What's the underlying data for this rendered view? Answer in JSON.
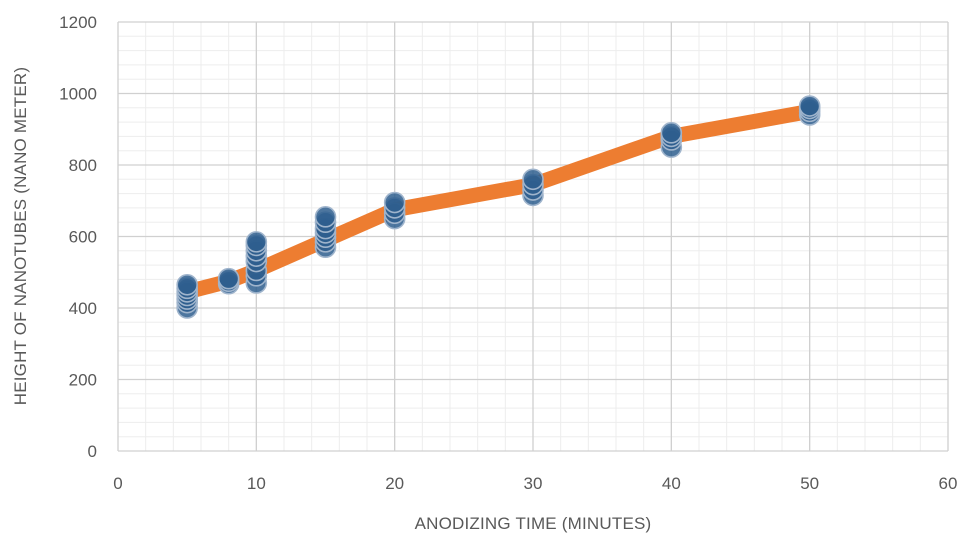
{
  "chart_data": {
    "type": "scatter",
    "title": "",
    "xlabel": "ANODIZING TIME (MINUTES)",
    "ylabel": "HEIGHT OF NANOTUBES (NANO METER)",
    "xlim": [
      0,
      60
    ],
    "ylim": [
      0,
      1200
    ],
    "x_ticks": [
      0,
      10,
      20,
      30,
      40,
      50,
      60
    ],
    "y_ticks": [
      0,
      200,
      400,
      600,
      800,
      1000,
      1200
    ],
    "grid": true,
    "minor_grid": true,
    "legend": "none",
    "trend_line": {
      "color": "#ED7D31",
      "points": [
        {
          "x": 5,
          "y": 445
        },
        {
          "x": 8,
          "y": 475
        },
        {
          "x": 10,
          "y": 505
        },
        {
          "x": 15,
          "y": 590
        },
        {
          "x": 20,
          "y": 675
        },
        {
          "x": 30,
          "y": 745
        },
        {
          "x": 40,
          "y": 880
        },
        {
          "x": 50,
          "y": 950
        }
      ]
    },
    "series": [
      {
        "color": "#2E5E8E",
        "points": [
          {
            "x": 5,
            "y": 400
          },
          {
            "x": 5,
            "y": 415
          },
          {
            "x": 5,
            "y": 425
          },
          {
            "x": 5,
            "y": 435
          },
          {
            "x": 5,
            "y": 445
          },
          {
            "x": 5,
            "y": 455
          },
          {
            "x": 5,
            "y": 465
          },
          {
            "x": 8,
            "y": 468
          },
          {
            "x": 8,
            "y": 475
          },
          {
            "x": 8,
            "y": 482
          },
          {
            "x": 10,
            "y": 470
          },
          {
            "x": 10,
            "y": 490
          },
          {
            "x": 10,
            "y": 505
          },
          {
            "x": 10,
            "y": 530
          },
          {
            "x": 10,
            "y": 545
          },
          {
            "x": 10,
            "y": 560
          },
          {
            "x": 10,
            "y": 575
          },
          {
            "x": 10,
            "y": 585
          },
          {
            "x": 15,
            "y": 570
          },
          {
            "x": 15,
            "y": 585
          },
          {
            "x": 15,
            "y": 598
          },
          {
            "x": 15,
            "y": 610
          },
          {
            "x": 15,
            "y": 622
          },
          {
            "x": 15,
            "y": 640
          },
          {
            "x": 15,
            "y": 655
          },
          {
            "x": 20,
            "y": 650
          },
          {
            "x": 20,
            "y": 665
          },
          {
            "x": 20,
            "y": 680
          },
          {
            "x": 20,
            "y": 695
          },
          {
            "x": 30,
            "y": 715
          },
          {
            "x": 30,
            "y": 730
          },
          {
            "x": 30,
            "y": 745
          },
          {
            "x": 30,
            "y": 760
          },
          {
            "x": 40,
            "y": 850
          },
          {
            "x": 40,
            "y": 870
          },
          {
            "x": 40,
            "y": 880
          },
          {
            "x": 40,
            "y": 890
          },
          {
            "x": 50,
            "y": 940
          },
          {
            "x": 50,
            "y": 950
          },
          {
            "x": 50,
            "y": 958
          },
          {
            "x": 50,
            "y": 965
          }
        ]
      }
    ]
  }
}
